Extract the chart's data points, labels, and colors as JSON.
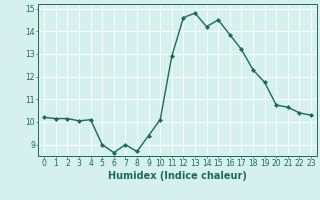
{
  "xlabel": "Humidex (Indice chaleur)",
  "x": [
    0,
    1,
    2,
    3,
    4,
    5,
    6,
    7,
    8,
    9,
    10,
    11,
    12,
    13,
    14,
    15,
    16,
    17,
    18,
    19,
    20,
    21,
    22,
    23
  ],
  "y": [
    10.2,
    10.15,
    10.15,
    10.05,
    10.1,
    9.0,
    8.65,
    9.0,
    8.7,
    9.4,
    10.1,
    12.9,
    14.6,
    14.8,
    14.2,
    14.5,
    13.85,
    13.2,
    12.3,
    11.75,
    10.75,
    10.65,
    10.4,
    10.3
  ],
  "ylim": [
    8.5,
    15.2
  ],
  "xlim": [
    -0.5,
    23.5
  ],
  "yticks": [
    9,
    10,
    11,
    12,
    13,
    14,
    15
  ],
  "xticks": [
    0,
    1,
    2,
    3,
    4,
    5,
    6,
    7,
    8,
    9,
    10,
    11,
    12,
    13,
    14,
    15,
    16,
    17,
    18,
    19,
    20,
    21,
    22,
    23
  ],
  "line_color": "#1a6b5a",
  "marker": "D",
  "marker_size": 2.0,
  "background_color": "#d6f0ee",
  "grid_color": "#ffffff",
  "tick_label_fontsize": 5.5,
  "xlabel_fontsize": 7.0,
  "line_width": 1.0
}
